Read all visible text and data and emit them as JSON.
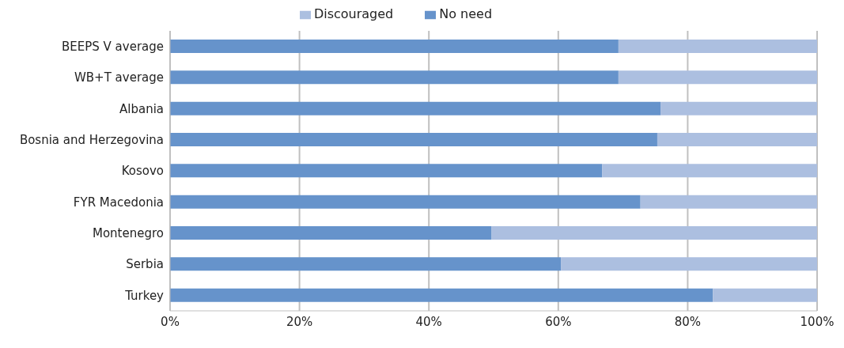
{
  "chart_data": {
    "type": "bar",
    "orientation": "horizontal",
    "stacked": true,
    "categories": [
      "BEEPS V average",
      "WB+T average",
      "Albania",
      "Bosnia and Herzegovina",
      "Kosovo",
      "FYR Macedonia",
      "Montenegro",
      "Serbia",
      "Turkey"
    ],
    "series": [
      {
        "name": "No need",
        "color": "#6693cb",
        "values": [
          69.3,
          69.3,
          75.8,
          75.3,
          66.8,
          72.7,
          49.7,
          60.4,
          83.9
        ]
      },
      {
        "name": "Discouraged",
        "color": "#acbfe0",
        "values": [
          30.7,
          30.7,
          24.2,
          24.7,
          33.2,
          27.3,
          50.3,
          39.6,
          16.1
        ]
      }
    ],
    "xlim": [
      0,
      100
    ],
    "xticks": [
      {
        "value": 0,
        "label": "0%"
      },
      {
        "value": 20,
        "label": "20%"
      },
      {
        "value": 40,
        "label": "40%"
      },
      {
        "value": 60,
        "label": "60%"
      },
      {
        "value": 80,
        "label": "80%"
      },
      {
        "value": 100,
        "label": "100%"
      }
    ],
    "grid": "x",
    "legend": "top"
  }
}
